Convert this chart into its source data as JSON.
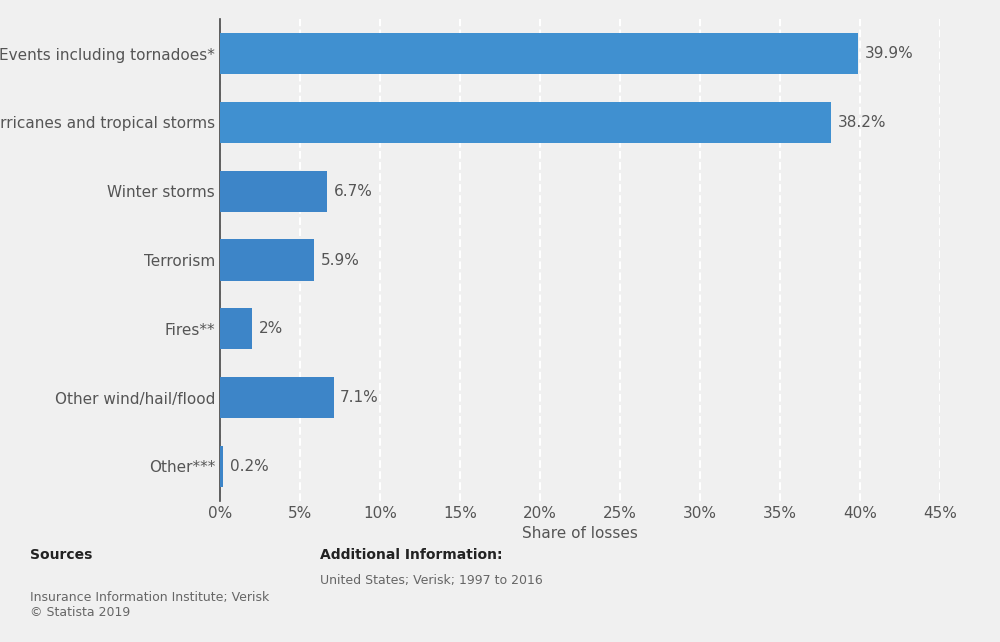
{
  "categories": [
    "Events including tornadoes*",
    "Hurricanes and tropical storms",
    "Winter storms",
    "Terrorism",
    "Fires**",
    "Other wind/hail/flood",
    "Other***"
  ],
  "values": [
    39.9,
    38.2,
    6.7,
    5.9,
    2.0,
    7.1,
    0.2
  ],
  "labels": [
    "39.9%",
    "38.2%",
    "6.7%",
    "5.9%",
    "2%",
    "7.1%",
    "0.2%"
  ],
  "bar_colors": [
    "#4090d0",
    "#4090d0",
    "#3d85c8",
    "#3d85c8",
    "#3d85c8",
    "#3d85c8",
    "#3d85c8"
  ],
  "xlabel": "Share of losses",
  "xlim": [
    0,
    45
  ],
  "xticks": [
    0,
    5,
    10,
    15,
    20,
    25,
    30,
    35,
    40,
    45
  ],
  "xtick_labels": [
    "0%",
    "5%",
    "10%",
    "15%",
    "20%",
    "25%",
    "30%",
    "35%",
    "40%",
    "45%"
  ],
  "background_color": "#f0f0f0",
  "plot_bg_color": "#f0f0f0",
  "grid_color": "#ffffff",
  "bar_height": 0.6,
  "label_fontsize": 11,
  "tick_fontsize": 11,
  "xlabel_fontsize": 11,
  "sources_text": "Sources",
  "sources_detail": "Insurance Information Institute; Verisk\n© Statista 2019",
  "additional_info_label": "Additional Information:",
  "additional_info_text": "United States; Verisk; 1997 to 2016",
  "y_label_fontsize": 11,
  "text_color": "#555555",
  "footer_bold_color": "#222222",
  "footer_text_color": "#666666"
}
